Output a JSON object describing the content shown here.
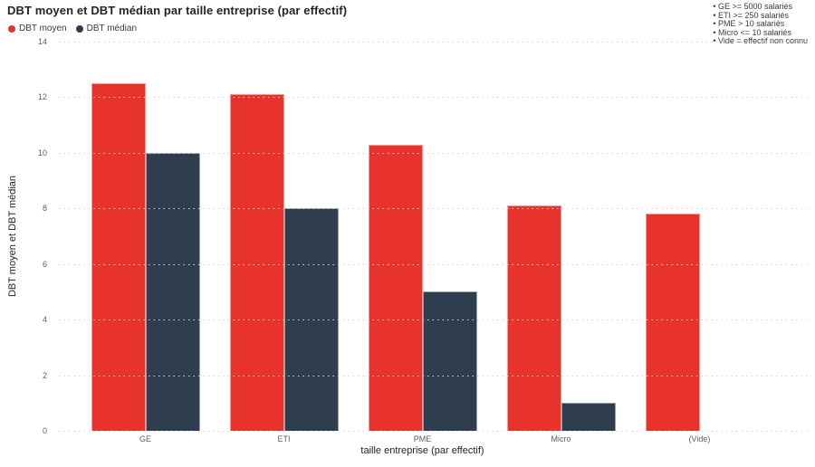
{
  "title": "DBT moyen et DBT médian par taille entreprise (par effectif)",
  "legend": [
    {
      "label": "DBT moyen",
      "color": "#e8332c"
    },
    {
      "label": "DBT médian",
      "color": "#2e3e4f"
    }
  ],
  "annotations": [
    "GE >= 5000 salariés",
    "ETI >= 250 salariés",
    "PME > 10 salariés",
    "Micro <= 10 salariés",
    "Vide = effectif non connu"
  ],
  "chart_data": {
    "type": "bar",
    "title": "DBT moyen et DBT médian par taille entreprise (par effectif)",
    "categories": [
      "GE",
      "ETI",
      "PME",
      "Micro",
      "(Vide)"
    ],
    "series": [
      {
        "name": "DBT moyen",
        "color": "#e8332c",
        "values": [
          12.5,
          12.1,
          10.3,
          8.1,
          7.8
        ]
      },
      {
        "name": "DBT médian",
        "color": "#2e3e4f",
        "values": [
          10,
          8,
          5,
          1,
          null
        ]
      }
    ],
    "xlabel": "taille entreprise (par effectif)",
    "ylabel": "DBT moyen et DBT médian",
    "ylim": [
      0,
      14
    ],
    "yticks": [
      0,
      2,
      4,
      6,
      8,
      10,
      12,
      14
    ],
    "grid": "horizontal-dotted",
    "legend_position": "top-left",
    "gridline_color": "#d6d6d6",
    "tick_label_color": "#605e5c"
  }
}
